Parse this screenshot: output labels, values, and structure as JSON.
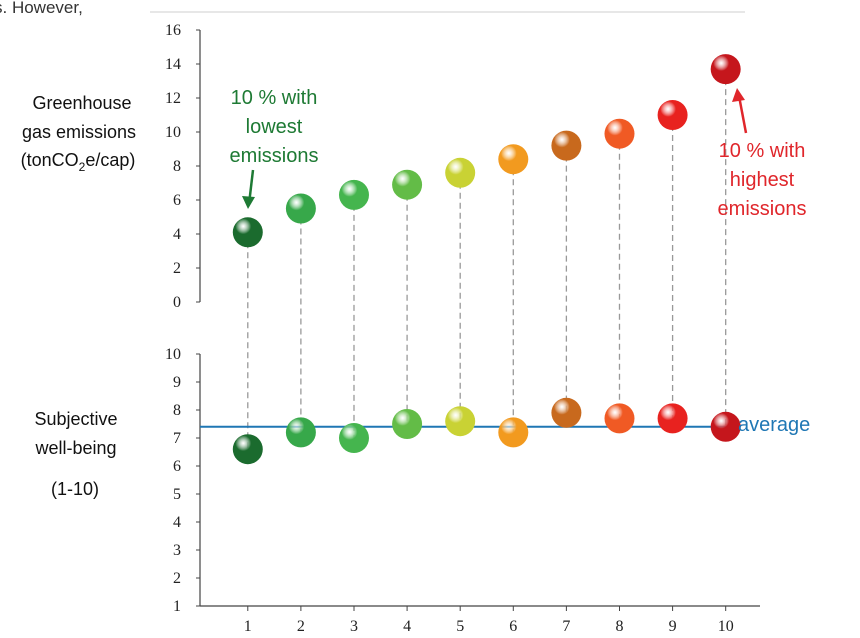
{
  "top_fragment": "s. However,",
  "colors": {
    "axis": "#444444",
    "dash": "#999999",
    "average_line": "#1f77b4",
    "annotation_low": "#1e7a34",
    "annotation_high": "#e0262b",
    "deciles": [
      "#1b6b2e",
      "#37a84a",
      "#45b54e",
      "#63bc47",
      "#c9d234",
      "#f29a1f",
      "#c8691d",
      "#f05a24",
      "#e8221f",
      "#c5161c"
    ]
  },
  "chart_data": [
    {
      "type": "scatter",
      "panel": "top",
      "ylabel_lines": [
        "Greenhouse",
        "gas emissions"
      ],
      "ylabel_unit": {
        "prefix": "(tonCO",
        "sub": "2",
        "suffix": "e/cap)"
      },
      "ylim": [
        0,
        16
      ],
      "yticks": [
        "0",
        "2",
        "4",
        "6",
        "8",
        "10",
        "12",
        "14",
        "16"
      ],
      "x": [
        1,
        2,
        3,
        4,
        5,
        6,
        7,
        8,
        9,
        10
      ],
      "values": [
        4.1,
        5.5,
        6.3,
        6.9,
        7.6,
        8.4,
        9.2,
        9.9,
        11.0,
        13.7
      ],
      "annotations": [
        {
          "lines": [
            "10 % with",
            "lowest",
            "emissions"
          ],
          "color_key": "annotation_low"
        },
        {
          "lines": [
            "10 % with",
            "highest",
            "emissions"
          ],
          "color_key": "annotation_high"
        }
      ]
    },
    {
      "type": "scatter",
      "panel": "bottom",
      "ylabel_lines": [
        "Subjective",
        "well-being"
      ],
      "ylabel_range": "(1-10)",
      "ylim": [
        1,
        10
      ],
      "yticks": [
        "1",
        "2",
        "3",
        "4",
        "5",
        "6",
        "7",
        "8",
        "9",
        "10"
      ],
      "x": [
        1,
        2,
        3,
        4,
        5,
        6,
        7,
        8,
        9,
        10
      ],
      "xticks": [
        "1",
        "2",
        "3",
        "4",
        "5",
        "6",
        "7",
        "8",
        "9",
        "10"
      ],
      "values": [
        6.6,
        7.2,
        7.0,
        7.5,
        7.6,
        7.2,
        7.9,
        7.7,
        7.7,
        7.4
      ],
      "average": 7.4,
      "average_label": "average"
    }
  ]
}
